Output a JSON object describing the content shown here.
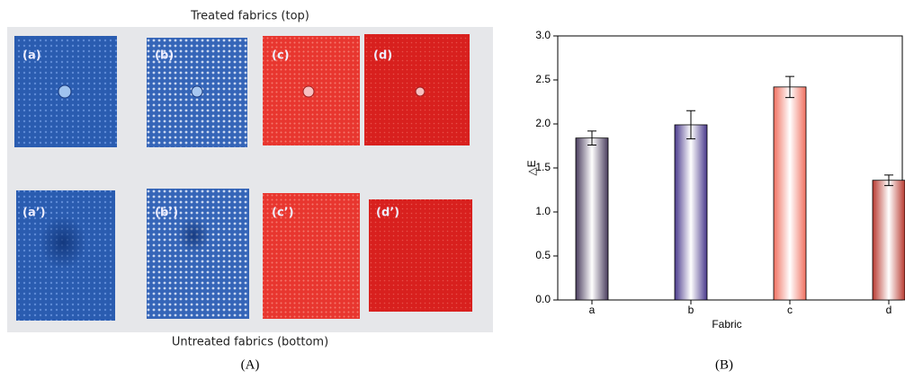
{
  "photo": {
    "caption_top": "Treated fabrics (top)",
    "caption_bottom": "Untreated fabrics (bottom)",
    "labels": [
      "(a)",
      "(b)",
      "(c)",
      "(d)",
      "(a’)",
      "(b’)",
      "(c’)",
      "(d’)"
    ]
  },
  "panel_labels": [
    "(A)",
    "(B)"
  ],
  "chart_data": {
    "type": "bar",
    "x_label": "Fabric",
    "y_label": "△E",
    "categories": [
      "a",
      "b",
      "c",
      "d"
    ],
    "values": [
      1.84,
      1.99,
      2.42,
      1.36
    ],
    "errors": [
      0.08,
      0.16,
      0.12,
      0.06
    ],
    "colors": [
      "#4a3d5e",
      "#4a3a8c",
      "#f07060",
      "#b83a30"
    ],
    "ylim": [
      0,
      3
    ],
    "yticks": [
      {
        "value": 0,
        "label": "0.0"
      },
      0.5,
      {
        "value": 1,
        "label": "1.0"
      },
      1.5,
      {
        "value": 2,
        "label": "2.0"
      },
      2.5,
      {
        "value": 3,
        "label": "3.0"
      }
    ]
  }
}
